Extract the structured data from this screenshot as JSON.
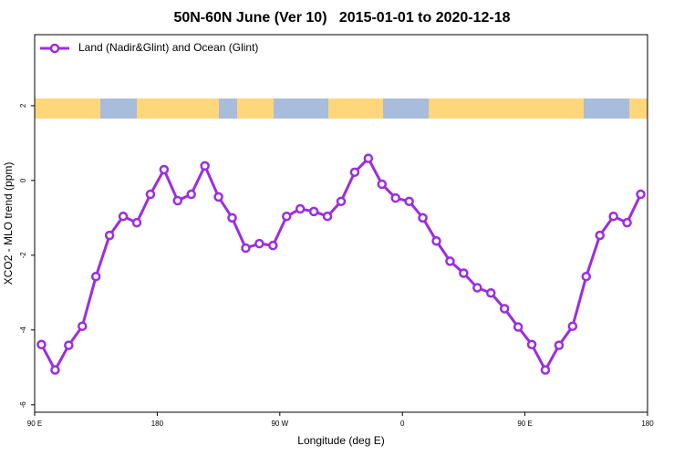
{
  "chart_data": {
    "type": "line",
    "title": "50N-60N June (Ver 10)   2015-01-01 to 2020-12-18",
    "x_label": "Longitude (deg E)",
    "y_label": "XCO2 - MLO trend (ppm)",
    "legend": "top-left",
    "x": [
      95,
      105,
      115,
      125,
      135,
      145,
      155,
      165,
      175,
      185,
      195,
      205,
      215,
      225,
      235,
      245,
      255,
      265,
      275,
      285,
      295,
      305,
      315,
      325,
      335,
      345,
      355,
      365,
      375,
      385,
      395,
      405,
      415,
      425,
      435,
      445,
      455,
      465,
      475,
      485,
      495,
      505,
      515,
      525,
      535
    ],
    "series": [
      {
        "name": "Land (Nadir&Glint) and Ocean (Glint)",
        "color": "#9b2de0",
        "values": [
          -4.39,
          -5.07,
          -4.41,
          -3.9,
          -2.57,
          -1.47,
          -0.96,
          -1.13,
          -0.37,
          0.29,
          -0.54,
          -0.37,
          0.39,
          -0.44,
          -1.0,
          -1.81,
          -1.69,
          -1.74,
          -0.96,
          -0.76,
          -0.83,
          -0.96,
          -0.56,
          0.22,
          0.59,
          -0.1,
          -0.47,
          -0.56,
          -1.0,
          -1.62,
          -2.16,
          -2.48,
          -2.87,
          -3.01,
          -3.43,
          -3.92,
          -4.39,
          -5.07,
          -4.41,
          -3.9,
          -2.57,
          -1.47,
          -0.96,
          -1.13,
          -0.37
        ]
      }
    ],
    "xlim": [
      90,
      540
    ],
    "xticks": [
      {
        "value": 90,
        "label": "90 E"
      },
      180,
      {
        "value": 270,
        "label": "90 W"
      },
      {
        "value": 360,
        "label": "0"
      },
      {
        "value": 450,
        "label": "90 E"
      },
      {
        "value": 540,
        "label": "180"
      }
    ],
    "ylim": [
      -6.2,
      3.9
    ],
    "yticks": [
      -6,
      -4,
      -2,
      0,
      2
    ]
  }
}
